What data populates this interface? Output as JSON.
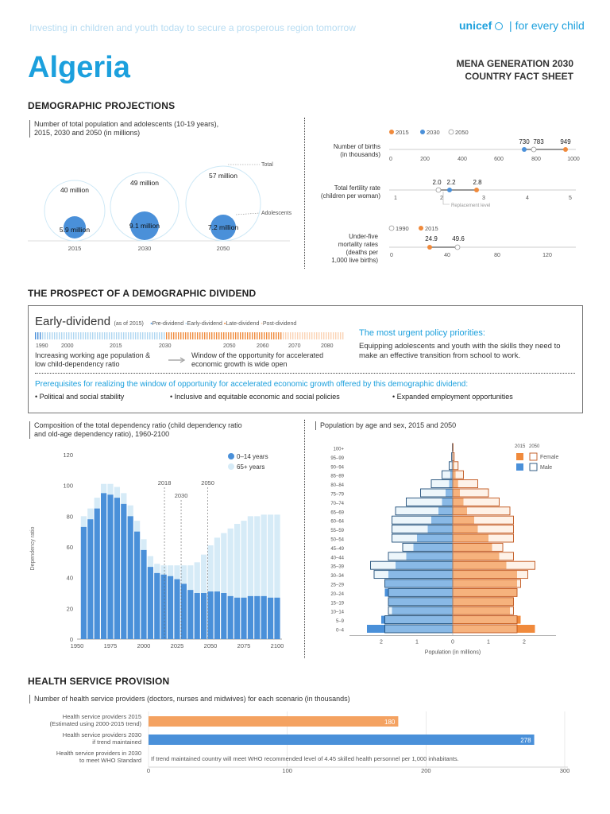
{
  "header": {
    "tagline": "Investing in children and youth today to secure a prosperous region tomorrow",
    "brand": "unicef",
    "brand_tag": "for every child",
    "country": "Algeria",
    "sheet_line1": "MENA GENERATION 2030",
    "sheet_line2": "COUNTRY FACT SHEET"
  },
  "demographic": {
    "title": "DEMOGRAPHIC PROJECTIONS",
    "subtitle_line1": "Number of total population and adolescents (10-19 years),",
    "subtitle_line2": "2015, 2030 and 2050 (in millions)",
    "total_label": "Total",
    "adolescents_label": "Adolescents",
    "years": [
      "2015",
      "2030",
      "2050"
    ],
    "totals": [
      "40 million",
      "49 million",
      "57 million"
    ],
    "adolescents": [
      "5.9 million",
      "9.1 million",
      "7.2 million"
    ]
  },
  "indicators": {
    "legend_a": [
      "2015",
      "2030",
      "2050"
    ],
    "births_label_1": "Number of births",
    "births_label_2": "(in thousands)",
    "births_values": [
      "730",
      "783",
      "949"
    ],
    "births_ticks": [
      "0",
      "200",
      "400",
      "600",
      "800",
      "1000"
    ],
    "fert_label_1": "Total fertility rate",
    "fert_label_2": "(children per woman)",
    "fert_values": [
      "2.0",
      "2.2",
      "2.8"
    ],
    "fert_ticks": [
      "1",
      "2",
      "3",
      "4",
      "5"
    ],
    "replacement": "Replacement level",
    "legend_b": [
      "1990",
      "2015"
    ],
    "u5_label_1": "Under-five",
    "u5_label_2": "mortality rates",
    "u5_label_3": "(deaths per",
    "u5_label_4": "1,000 live births)",
    "u5_values": [
      "24.9",
      "49.6"
    ],
    "u5_ticks": [
      "0",
      "40",
      "80",
      "120"
    ]
  },
  "dividend": {
    "title": "THE PROSPECT OF A DEMOGRAPHIC DIVIDEND",
    "stage": "Early-dividend",
    "as_of": "(as of 2015)",
    "legend": [
      "Pre-dividend",
      "Early-dividend",
      "Late-dividend",
      "Post-dividend"
    ],
    "timeline_years": [
      "1990",
      "2000",
      "2015",
      "2030",
      "2050",
      "2060",
      "2070",
      "2080"
    ],
    "left_text_1": "Increasing working age population &",
    "left_text_2": "low child-dependency ratio",
    "right_text_1": "Window of the opportunity for accelerated",
    "right_text_2": "economic growth is wide open",
    "priority_title": "The most urgent policy priorities:",
    "priority_text_1": "Equipping adolescents and youth with the skills they need to",
    "priority_text_2": "make an effective transition from school to work.",
    "prereq_title": "Prerequisites for realizing the window of opportunity for accelerated economic growth offered by this demographic dividend:",
    "prereqs": [
      "Political and social stability",
      "Inclusive and equitable economic and social policies",
      "Expanded employment opportunities"
    ]
  },
  "dependency": {
    "subtitle_line1": "Composition of the total dependency ratio (child dependency ratio",
    "subtitle_line2": "and old-age dependency ratio), 1960-2100",
    "markers": [
      "2018",
      "2030",
      "2050"
    ]
  },
  "pyramid": {
    "subtitle": "Population by age and sex, 2015 and 2050",
    "legend_years": [
      "2015",
      "2050"
    ],
    "legend_female": "Female",
    "legend_male": "Male"
  },
  "health": {
    "title": "HEALTH SERVICE PROVISION",
    "subtitle": "Number of health service providers (doctors, nurses and midwives) for each scenario (in thousands)",
    "row1_line1": "Health service providers 2015",
    "row1_line2": "(Estimated using 2000-2015 trend)",
    "row2_line1": "Health service providers 2030",
    "row2_line2": "if trend maintained",
    "row3_line1": "Health service providers in 2030",
    "row3_line2": "to meet WHO Standard",
    "note": "If trend maintained country will meet WHO recommended level of 4.45 skilled health personnel per 1,000 inhabitants.",
    "ticks": [
      "0",
      "100",
      "200",
      "300"
    ]
  },
  "chart_data": [
    {
      "type": "bar",
      "title": "Composition of the total dependency ratio (child dependency ratio and old-age dependency ratio), 1960-2100",
      "ylabel": "Dependency ratio",
      "ylim": [
        0,
        120
      ],
      "yticks": [
        "0",
        "20",
        "40",
        "60",
        "80",
        "100",
        "120"
      ],
      "xticks": [
        "1950",
        "1975",
        "2000",
        "2025",
        "2050",
        "2075",
        "2100"
      ],
      "x": [
        1955,
        1960,
        1965,
        1970,
        1975,
        1980,
        1985,
        1990,
        1995,
        2000,
        2005,
        2010,
        2015,
        2020,
        2025,
        2030,
        2035,
        2040,
        2045,
        2050,
        2055,
        2060,
        2065,
        2070,
        2075,
        2080,
        2085,
        2090,
        2095,
        2100
      ],
      "series": [
        {
          "name": "0–14 years",
          "color": "#4a90d9",
          "values": [
            73,
            78,
            85,
            95,
            94,
            92,
            88,
            80,
            70,
            58,
            47,
            43,
            42,
            41,
            39,
            36,
            32,
            30,
            30,
            31,
            31,
            30,
            28,
            27,
            27,
            28,
            28,
            28,
            27,
            27
          ]
        },
        {
          "name": "65+ years",
          "color": "#d6ebf7",
          "values": [
            7,
            7,
            7,
            6,
            7,
            7,
            7,
            7,
            7,
            7,
            7,
            6,
            6,
            7,
            9,
            12,
            16,
            20,
            25,
            30,
            35,
            39,
            44,
            48,
            50,
            52,
            52,
            53,
            54,
            54
          ]
        }
      ]
    },
    {
      "type": "bar",
      "title": "Population by age and sex, 2015 and 2050",
      "xlabel": "Population (in millions)",
      "xticks": [
        "2",
        "1",
        "0",
        "1",
        "2"
      ],
      "categories": [
        "0–4",
        "5–9",
        "10–14",
        "15–19",
        "20–24",
        "25–29",
        "30–34",
        "35–39",
        "40–44",
        "45–49",
        "50–54",
        "55–59",
        "60–64",
        "65–69",
        "70–74",
        "75–79",
        "80–84",
        "85–89",
        "90–94",
        "95–99",
        "100+"
      ],
      "series": [
        {
          "name": "Male 2015",
          "values": [
            2.4,
            2.0,
            1.7,
            1.8,
            1.9,
            1.9,
            1.8,
            1.6,
            1.3,
            1.1,
            1.0,
            0.7,
            0.6,
            0.4,
            0.3,
            0.2,
            0.1,
            0.07,
            0.03,
            0.01,
            0.005
          ]
        },
        {
          "name": "Female 2015",
          "values": [
            2.3,
            1.9,
            1.6,
            1.7,
            1.8,
            1.8,
            1.8,
            1.5,
            1.3,
            1.1,
            1.0,
            0.7,
            0.6,
            0.4,
            0.3,
            0.2,
            0.15,
            0.08,
            0.04,
            0.01,
            0.005
          ]
        },
        {
          "name": "Male 2050",
          "values": [
            1.9,
            1.9,
            1.8,
            1.8,
            1.8,
            1.9,
            2.2,
            2.3,
            1.8,
            1.4,
            1.7,
            1.7,
            1.7,
            1.6,
            1.3,
            0.9,
            0.6,
            0.3,
            0.1,
            0.03,
            0.01
          ]
        },
        {
          "name": "Female 2050",
          "values": [
            1.8,
            1.8,
            1.7,
            1.7,
            1.8,
            1.9,
            2.1,
            2.3,
            1.7,
            1.4,
            1.7,
            1.7,
            1.7,
            1.6,
            1.3,
            1.0,
            0.7,
            0.3,
            0.15,
            0.04,
            0.01
          ]
        }
      ]
    },
    {
      "type": "bar",
      "title": "Number of health service providers (doctors, nurses and midwives) for each scenario (in thousands)",
      "categories": [
        "Health service providers 2015 (Estimated using 2000-2015 trend)",
        "Health service providers 2030 if trend maintained",
        "Health service providers in 2030 to meet WHO Standard"
      ],
      "values": [
        180,
        278,
        null
      ],
      "value_labels": [
        "180",
        "278",
        ""
      ],
      "xlim": [
        0,
        300
      ]
    }
  ]
}
